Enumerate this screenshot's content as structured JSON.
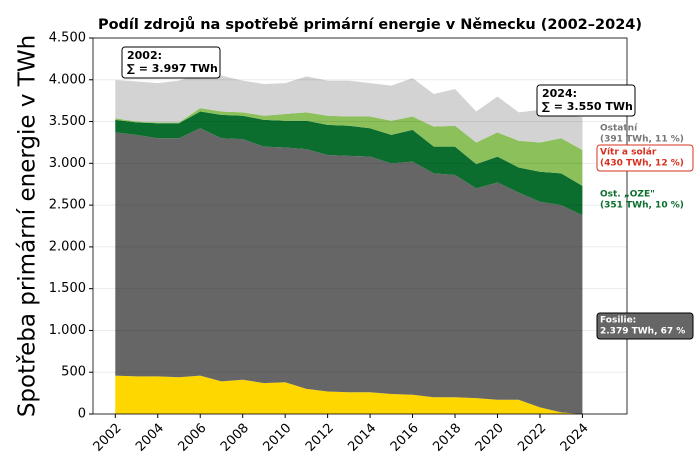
{
  "chart_data": {
    "type": "stacked_area",
    "title": "Podíl zdrojů na spotřebě primární energie v Německu (2002–2024)",
    "y_label": "Spotřeba primární energie v TWh",
    "x": [
      2002,
      2003,
      2004,
      2005,
      2006,
      2007,
      2008,
      2009,
      2010,
      2011,
      2012,
      2013,
      2014,
      2015,
      2016,
      2017,
      2018,
      2019,
      2020,
      2021,
      2022,
      2023,
      2024
    ],
    "xlim": [
      2000.95,
      2026.1
    ],
    "xticks": [
      2002,
      2004,
      2006,
      2008,
      2010,
      2012,
      2014,
      2016,
      2018,
      2020,
      2022,
      2024
    ],
    "ylim": [
      0,
      4500
    ],
    "yticks": [
      0,
      500,
      {
        "value": 1000,
        "label": "1.000"
      },
      {
        "value": 1500,
        "label": "1.500"
      },
      {
        "value": 2000,
        "label": "2.000"
      },
      {
        "value": 2500,
        "label": "2.500"
      },
      {
        "value": 3000,
        "label": "3.000"
      },
      {
        "value": 3500,
        "label": "3.500"
      },
      {
        "value": 4000,
        "label": "4.000"
      },
      {
        "value": 4500,
        "label": "4.500"
      }
    ],
    "grid": true,
    "series": [
      {
        "color": "#ffd700",
        "values": [
          460,
          450,
          450,
          440,
          460,
          390,
          410,
          370,
          380,
          300,
          270,
          260,
          260,
          240,
          230,
          200,
          200,
          190,
          170,
          170,
          80,
          20,
          0
        ]
      },
      {
        "name": "Fosilie:",
        "end_label": "2.379 TWh, 67 %",
        "color": "#666666",
        "values": [
          2910,
          2890,
          2850,
          2860,
          2960,
          2910,
          2880,
          2830,
          2810,
          2870,
          2830,
          2830,
          2820,
          2760,
          2790,
          2680,
          2660,
          2510,
          2600,
          2480,
          2460,
          2480,
          2379
        ]
      },
      {
        "name": "Ost. „OZE\"",
        "end_label": "(351 TWh, 10 %)",
        "color": "#0b6e2e",
        "values": [
          150,
          150,
          180,
          180,
          200,
          280,
          280,
          320,
          320,
          340,
          360,
          360,
          340,
          340,
          380,
          320,
          340,
          290,
          310,
          300,
          360,
          380,
          351
        ]
      },
      {
        "name": "Vítr a solár",
        "end_label": "(430 TWh, 12 %)",
        "color": "#8bc05a",
        "values": [
          20,
          10,
          10,
          10,
          40,
          40,
          40,
          50,
          80,
          100,
          110,
          110,
          140,
          170,
          160,
          240,
          250,
          260,
          290,
          320,
          350,
          420,
          430
        ]
      },
      {
        "name": "Ostatní",
        "end_label": "(391 TWh, 11 %)",
        "color": "#d3d3d3",
        "values": [
          457,
          480,
          470,
          500,
          410,
          430,
          380,
          380,
          370,
          430,
          420,
          430,
          400,
          420,
          460,
          390,
          440,
          370,
          430,
          340,
          390,
          280,
          391
        ]
      }
    ],
    "annotations": [
      {
        "lines": [
          "2002:",
          "∑ = 3.997 TWh"
        ]
      },
      {
        "lines": [
          "2024:",
          "∑ = 3.550 TWh"
        ]
      }
    ]
  }
}
